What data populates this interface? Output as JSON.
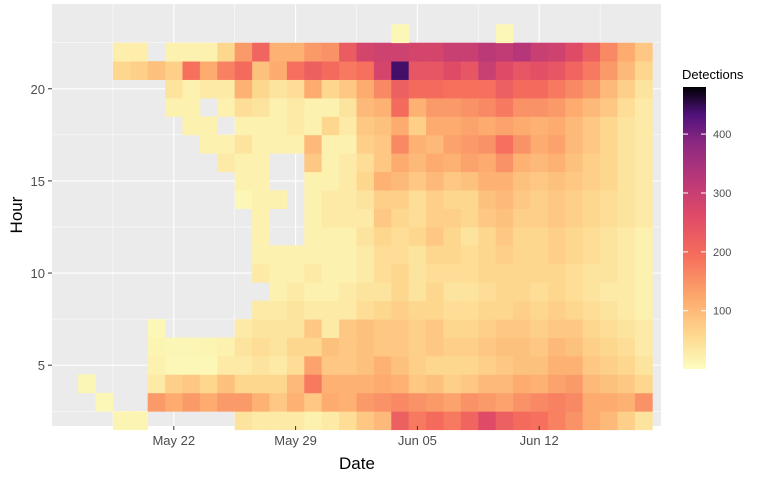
{
  "chart_data": {
    "type": "heatmap",
    "title": "",
    "xlabel": "Date",
    "ylabel": "Hour",
    "x_tick_labels": [
      "May 22",
      "May 29",
      "Jun 05",
      "Jun 12"
    ],
    "x_tick_dates": [
      "2021-05-22",
      "2021-05-29",
      "2021-06-05",
      "2021-06-12"
    ],
    "y_ticks": [
      5,
      10,
      15,
      20
    ],
    "x_range": [
      "2021-05-15",
      "2021-06-19"
    ],
    "y_range": [
      1.7,
      24.6
    ],
    "grid": true,
    "color_scale": "magma (reversed)",
    "legend": {
      "title": "Detections",
      "position": "right",
      "ticks": [
        100,
        200,
        300,
        400
      ],
      "min": 1,
      "max": 480
    },
    "columns": [
      {
        "date": "2021-05-17",
        "hours": [
          4
        ],
        "values": [
          12
        ]
      },
      {
        "date": "2021-05-18",
        "hours": [
          3
        ],
        "values": [
          10
        ]
      },
      {
        "date": "2021-05-19",
        "hours": [
          2,
          21,
          22
        ],
        "values": [
          15,
          60,
          25
        ]
      },
      {
        "date": "2021-05-20",
        "hours": [
          2,
          21,
          22
        ],
        "values": [
          15,
          70,
          25
        ]
      },
      {
        "date": "2021-05-21",
        "hours": [
          3,
          4,
          5,
          6,
          7,
          21
        ],
        "values": [
          140,
          30,
          20,
          15,
          10,
          90
        ]
      },
      {
        "date": "2021-05-22",
        "hours": [
          3,
          4,
          5,
          6,
          19,
          20,
          21,
          22
        ],
        "values": [
          120,
          70,
          10,
          12,
          20,
          40,
          70,
          20
        ]
      },
      {
        "date": "2021-05-23",
        "hours": [
          3,
          4,
          5,
          6,
          18,
          19,
          20,
          21,
          22
        ],
        "values": [
          140,
          80,
          10,
          12,
          20,
          20,
          20,
          190,
          20
        ]
      },
      {
        "date": "2021-05-24",
        "hours": [
          3,
          4,
          5,
          6,
          17,
          18,
          20,
          21,
          22
        ],
        "values": [
          120,
          60,
          10,
          15,
          20,
          20,
          30,
          120,
          20
        ]
      },
      {
        "date": "2021-05-25",
        "hours": [
          3,
          4,
          5,
          6,
          16,
          17,
          19,
          20,
          21,
          22
        ],
        "values": [
          140,
          90,
          30,
          20,
          30,
          20,
          20,
          30,
          170,
          60
        ]
      },
      {
        "date": "2021-05-26",
        "hours": [
          2,
          3,
          4,
          5,
          6,
          7,
          14,
          15,
          16,
          17,
          18,
          19,
          20,
          21,
          22
        ],
        "values": [
          40,
          140,
          60,
          30,
          40,
          30,
          10,
          20,
          20,
          40,
          20,
          50,
          110,
          200,
          140
        ]
      },
      {
        "date": "2021-05-27",
        "hours": [
          2,
          3,
          4,
          5,
          6,
          7,
          8,
          10,
          11,
          12,
          13,
          14,
          15,
          16,
          17,
          18,
          19,
          20,
          21,
          22
        ],
        "values": [
          30,
          110,
          60,
          40,
          50,
          40,
          30,
          30,
          20,
          20,
          20,
          20,
          20,
          20,
          20,
          20,
          40,
          60,
          90,
          210
        ]
      },
      {
        "date": "2021-05-28",
        "hours": [
          2,
          3,
          4,
          5,
          6,
          7,
          8,
          9,
          10,
          11,
          14,
          17,
          18,
          19,
          20,
          21,
          22
        ],
        "values": [
          30,
          80,
          60,
          30,
          40,
          40,
          30,
          20,
          20,
          20,
          20,
          20,
          20,
          20,
          40,
          120,
          110
        ]
      },
      {
        "date": "2021-05-29",
        "hours": [
          2,
          3,
          4,
          5,
          6,
          7,
          8,
          9,
          10,
          11,
          17,
          18,
          19,
          20,
          21,
          22
        ],
        "values": [
          30,
          110,
          100,
          50,
          60,
          40,
          40,
          30,
          20,
          20,
          20,
          30,
          30,
          50,
          190,
          110
        ]
      },
      {
        "date": "2021-05-30",
        "hours": [
          2,
          3,
          4,
          5,
          6,
          7,
          8,
          9,
          10,
          11,
          12,
          13,
          14,
          15,
          16,
          17,
          18,
          19,
          20,
          21,
          22
        ],
        "values": [
          20,
          80,
          180,
          130,
          60,
          80,
          30,
          20,
          30,
          20,
          20,
          20,
          20,
          20,
          80,
          100,
          20,
          20,
          120,
          220,
          140
        ]
      },
      {
        "date": "2021-05-31",
        "hours": [
          2,
          3,
          4,
          5,
          6,
          7,
          8,
          9,
          10,
          11,
          12,
          13,
          14,
          15,
          16,
          17,
          18,
          19,
          20,
          21,
          22
        ],
        "values": [
          30,
          120,
          110,
          80,
          90,
          30,
          30,
          20,
          20,
          20,
          20,
          30,
          30,
          20,
          20,
          20,
          60,
          20,
          60,
          200,
          150
        ]
      },
      {
        "date": "2021-06-01",
        "hours": [
          2,
          3,
          4,
          5,
          6,
          7,
          8,
          9,
          10,
          11,
          12,
          13,
          14,
          15,
          16,
          17,
          18,
          19,
          20,
          21,
          22
        ],
        "values": [
          50,
          110,
          110,
          80,
          80,
          80,
          30,
          30,
          20,
          20,
          20,
          30,
          30,
          30,
          30,
          20,
          30,
          40,
          80,
          180,
          230
        ]
      },
      {
        "date": "2021-06-02",
        "hours": [
          2,
          3,
          4,
          5,
          6,
          7,
          8,
          9,
          10,
          11,
          12,
          13,
          14,
          15,
          16,
          17,
          18,
          19,
          20,
          21,
          22
        ],
        "values": [
          80,
          140,
          110,
          90,
          90,
          90,
          50,
          40,
          30,
          30,
          40,
          30,
          40,
          60,
          50,
          70,
          80,
          100,
          120,
          190,
          280
        ]
      },
      {
        "date": "2021-06-03",
        "hours": [
          2,
          3,
          4,
          5,
          6,
          7,
          8,
          9,
          10,
          11,
          12,
          13,
          14,
          15,
          16,
          17,
          18,
          19,
          20,
          21,
          22
        ],
        "values": [
          100,
          150,
          120,
          110,
          80,
          80,
          60,
          40,
          50,
          50,
          60,
          80,
          70,
          110,
          80,
          80,
          90,
          110,
          160,
          280,
          290
        ]
      },
      {
        "date": "2021-06-04",
        "hours": [
          2,
          3,
          4,
          5,
          6,
          7,
          8,
          9,
          10,
          11,
          12,
          13,
          14,
          15,
          16,
          17,
          18,
          19,
          20,
          21,
          22
        ],
        "values": [
          220,
          160,
          110,
          90,
          80,
          80,
          70,
          60,
          60,
          50,
          50,
          60,
          70,
          100,
          120,
          160,
          120,
          200,
          220,
          440,
          290
        ]
      },
      {
        "date": "2021-06-05",
        "hours": [
          2,
          3,
          4,
          5,
          6,
          7,
          8,
          9,
          10,
          11,
          12,
          13,
          14,
          15,
          16,
          17,
          18,
          19,
          20,
          21,
          22
        ],
        "values": [
          180,
          150,
          80,
          70,
          70,
          70,
          60,
          40,
          40,
          40,
          60,
          50,
          50,
          80,
          100,
          110,
          70,
          110,
          200,
          240,
          280
        ]
      },
      {
        "date": "2021-06-06",
        "hours": [
          2,
          3,
          4,
          5,
          6,
          7,
          8,
          9,
          10,
          11,
          12,
          13,
          14,
          15,
          16,
          17,
          18,
          19,
          20,
          21,
          22
        ],
        "values": [
          200,
          140,
          90,
          60,
          80,
          80,
          60,
          60,
          50,
          60,
          80,
          70,
          70,
          100,
          120,
          100,
          120,
          140,
          200,
          240,
          280
        ]
      },
      {
        "date": "2021-06-07",
        "hours": [
          2,
          3,
          4,
          5,
          6,
          7,
          8,
          9,
          10,
          11,
          12,
          13,
          14,
          15,
          16,
          17,
          18,
          19,
          20,
          21,
          22
        ],
        "values": [
          180,
          130,
          70,
          60,
          70,
          60,
          50,
          40,
          50,
          60,
          60,
          70,
          60,
          80,
          110,
          130,
          120,
          140,
          190,
          260,
          300
        ]
      },
      {
        "date": "2021-06-08",
        "hours": [
          2,
          3,
          4,
          5,
          6,
          7,
          8,
          9,
          10,
          11,
          12,
          13,
          14,
          15,
          16,
          17,
          18,
          19,
          20,
          21,
          22
        ],
        "values": [
          210,
          150,
          80,
          60,
          70,
          60,
          50,
          40,
          50,
          50,
          40,
          60,
          60,
          90,
          130,
          140,
          130,
          150,
          190,
          240,
          300
        ]
      },
      {
        "date": "2021-06-09",
        "hours": [
          2,
          3,
          4,
          5,
          6,
          7,
          8,
          9,
          10,
          11,
          12,
          13,
          14,
          15,
          16,
          17,
          18,
          19,
          20,
          21,
          22
        ],
        "values": [
          260,
          140,
          100,
          70,
          80,
          70,
          60,
          50,
          60,
          60,
          60,
          80,
          90,
          110,
          120,
          150,
          120,
          160,
          190,
          300,
          320
        ]
      },
      {
        "date": "2021-06-10",
        "hours": [
          2,
          3,
          4,
          5,
          6,
          7,
          8,
          9,
          10,
          11,
          12,
          13,
          14,
          15,
          16,
          17,
          18,
          19,
          20,
          21,
          22
        ],
        "values": [
          220,
          130,
          100,
          80,
          90,
          80,
          60,
          60,
          60,
          70,
          80,
          90,
          100,
          110,
          150,
          190,
          130,
          180,
          220,
          260,
          310
        ]
      },
      {
        "date": "2021-06-11",
        "hours": [
          2,
          3,
          4,
          5,
          6,
          7,
          8,
          9,
          10,
          11,
          12,
          13,
          14,
          15,
          16,
          17,
          18,
          19,
          20,
          21,
          22
        ],
        "values": [
          200,
          150,
          120,
          90,
          90,
          80,
          70,
          60,
          60,
          60,
          60,
          70,
          80,
          90,
          110,
          150,
          120,
          150,
          200,
          240,
          330
        ]
      },
      {
        "date": "2021-06-12",
        "hours": [
          2,
          3,
          4,
          5,
          6,
          7,
          8,
          9,
          10,
          11,
          12,
          13,
          14,
          15,
          16,
          17,
          18,
          19,
          20,
          21,
          22
        ],
        "values": [
          190,
          160,
          110,
          90,
          80,
          70,
          60,
          50,
          60,
          60,
          60,
          70,
          70,
          80,
          100,
          120,
          110,
          150,
          200,
          250,
          300
        ]
      },
      {
        "date": "2021-06-13",
        "hours": [
          2,
          3,
          4,
          5,
          6,
          7,
          8,
          9,
          10,
          11,
          12,
          13,
          14,
          15,
          16,
          17,
          18,
          19,
          20,
          21,
          22
        ],
        "values": [
          170,
          170,
          130,
          110,
          100,
          80,
          70,
          60,
          60,
          70,
          70,
          80,
          80,
          90,
          110,
          130,
          120,
          140,
          180,
          240,
          290
        ]
      },
      {
        "date": "2021-06-14",
        "hours": [
          2,
          3,
          4,
          5,
          6,
          7,
          8,
          9,
          10,
          11,
          12,
          13,
          14,
          15,
          16,
          17,
          18,
          19,
          20,
          21,
          22
        ],
        "values": [
          150,
          160,
          140,
          110,
          90,
          80,
          60,
          50,
          50,
          60,
          60,
          70,
          70,
          80,
          90,
          100,
          100,
          120,
          160,
          210,
          260
        ]
      },
      {
        "date": "2021-06-15",
        "hours": [
          2,
          3,
          4,
          5,
          6,
          7,
          8,
          9,
          10,
          11,
          12,
          13,
          14,
          15,
          16,
          17,
          18,
          19,
          20,
          21,
          22
        ],
        "values": [
          120,
          120,
          100,
          80,
          70,
          60,
          50,
          40,
          40,
          50,
          50,
          60,
          60,
          70,
          70,
          80,
          80,
          100,
          140,
          180,
          220
        ]
      },
      {
        "date": "2021-06-16",
        "hours": [
          2,
          3,
          4,
          5,
          6,
          7,
          8,
          9,
          10,
          11,
          12,
          13,
          14,
          15,
          16,
          17,
          18,
          19,
          20,
          21,
          22
        ],
        "values": [
          100,
          120,
          90,
          70,
          60,
          50,
          40,
          30,
          40,
          40,
          40,
          50,
          50,
          60,
          60,
          60,
          60,
          80,
          100,
          140,
          160
        ]
      },
      {
        "date": "2021-06-17",
        "hours": [
          2,
          3,
          4,
          5,
          6,
          7,
          8,
          9,
          10,
          11,
          12,
          13,
          14,
          15,
          16,
          17,
          18,
          19,
          20,
          21,
          22
        ],
        "values": [
          70,
          110,
          80,
          60,
          50,
          40,
          30,
          30,
          30,
          30,
          30,
          40,
          40,
          40,
          40,
          40,
          40,
          50,
          70,
          100,
          120
        ]
      },
      {
        "date": "2021-06-18",
        "hours": [
          2,
          3,
          4,
          5,
          6,
          7,
          8,
          9,
          10,
          11,
          12,
          13,
          14,
          15,
          16,
          17,
          18,
          19,
          20,
          21,
          22
        ],
        "values": [
          40,
          150,
          60,
          40,
          30,
          30,
          20,
          20,
          20,
          20,
          20,
          30,
          30,
          30,
          30,
          30,
          30,
          30,
          40,
          60,
          80
        ]
      }
    ],
    "extra_cells": [
      {
        "date": "2021-06-04",
        "hour": 23,
        "value": 10
      },
      {
        "date": "2021-06-10",
        "hour": 23,
        "value": 10
      }
    ]
  }
}
